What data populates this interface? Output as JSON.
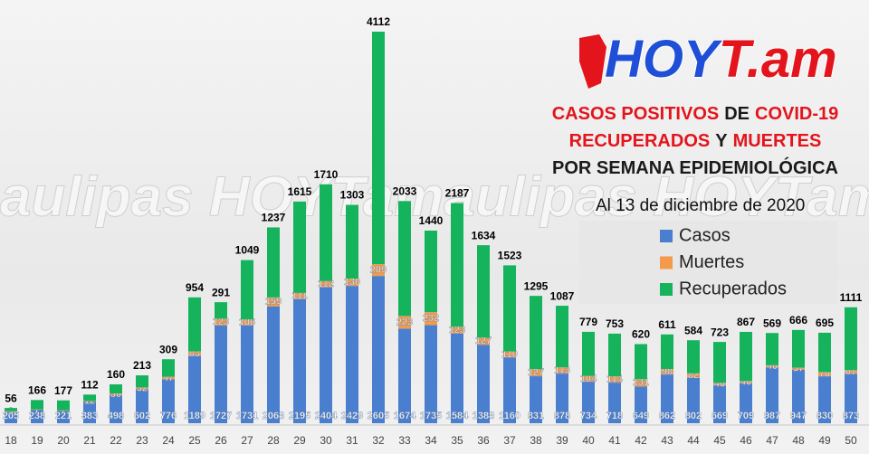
{
  "chart_data": {
    "type": "stacked_bar",
    "logo": [
      "HOY",
      "T.am"
    ],
    "title_lines": [
      [
        {
          "text": "CASOS POSITIVOS",
          "color": "#e3141c"
        },
        {
          "text": "DE",
          "color": "#1a1a1a"
        },
        {
          "text": "COVID-19",
          "color": "#e3141c"
        }
      ],
      [
        {
          "text": "RECUPERADOS",
          "color": "#e3141c"
        },
        {
          "text": "Y",
          "color": "#1a1a1a"
        },
        {
          "text": "MUERTES",
          "color": "#e3141c"
        }
      ],
      [
        {
          "text": "POR SEMANA EPIDEMIOLÓGICA",
          "color": "#1a1a1a"
        }
      ]
    ],
    "subtitle": "Al 13 de diciembre de 2020",
    "watermark": "maulipas HOYTamaulipas HOYTama",
    "categories": [
      "18",
      "19",
      "20",
      "21",
      "22",
      "23",
      "24",
      "25",
      "26",
      "27",
      "28",
      "29",
      "30",
      "31",
      "32",
      "33",
      "34",
      "35",
      "36",
      "37",
      "38",
      "39",
      "40",
      "41",
      "42",
      "43",
      "44",
      "45",
      "46",
      "47",
      "48",
      "49",
      "50"
    ],
    "series": [
      {
        "name": "Casos",
        "color": "#4a7fd0",
        "values": [
          205,
          238,
          221,
          383,
          498,
          602,
          776,
          1189,
          1727,
          1731,
          2068,
          2195,
          2404,
          2429,
          2605,
          1674,
          1735,
          1584,
          1388,
          1160,
          831,
          878,
          734,
          718,
          649,
          862,
          802,
          669,
          709,
          987,
          947,
          830,
          873
        ]
      },
      {
        "name": "Muertes",
        "color": "#f39a4b",
        "values": [
          9,
          7,
          7,
          12,
          30,
          32,
          47,
          83,
          123,
          106,
          159,
          111,
          112,
          130,
          209,
          223,
          232,
          123,
          127,
          110,
          127,
          113,
          104,
          114,
          131,
          98,
          82,
          46,
          40,
          40,
          37,
          76,
          67
        ]
      },
      {
        "name": "Recuperados",
        "color": "#14b35c",
        "values": [
          56,
          166,
          177,
          112,
          160,
          213,
          309,
          954,
          291,
          1049,
          1237,
          1615,
          1710,
          1303,
          4112,
          2033,
          1440,
          2187,
          1634,
          1523,
          1295,
          1087,
          779,
          753,
          620,
          611,
          584,
          723,
          867,
          569,
          666,
          695,
          1111
        ]
      }
    ]
  }
}
